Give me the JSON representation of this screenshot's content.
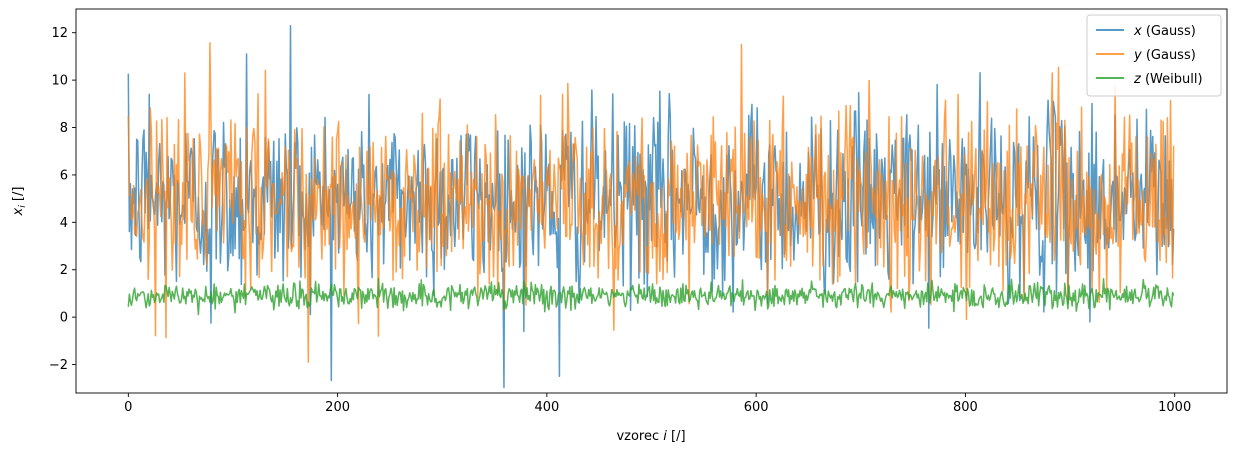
{
  "chart_data": {
    "type": "line",
    "title": "",
    "xlabel": {
      "prefix": "vzorec ",
      "var": "i",
      "suffix": " [/]"
    },
    "ylabel": {
      "var": "x",
      "sub": "i",
      "suffix": " [/]"
    },
    "xlim": [
      -50,
      1050
    ],
    "ylim": [
      -3.2,
      13.0
    ],
    "xticks": [
      0,
      200,
      400,
      600,
      800,
      1000
    ],
    "xtick_labels": [
      "0",
      "200",
      "400",
      "600",
      "800",
      "1000"
    ],
    "yticks": [
      -2,
      0,
      2,
      4,
      6,
      8,
      10,
      12
    ],
    "ytick_labels": [
      "−2",
      "0",
      "2",
      "4",
      "6",
      "8",
      "10",
      "12"
    ],
    "grid": false,
    "legend_position": "top-right",
    "n_samples": 1000,
    "series": [
      {
        "name_var": "x",
        "name_rest": " (Gauss)",
        "color": "#1f77b4",
        "opacity": 0.75,
        "mean": 5.0,
        "std": 1.9,
        "notable_points": [
          [
            155,
            12.3
          ],
          [
            113,
            11.1
          ],
          [
            412,
            -2.5
          ],
          [
            79,
            -0.25
          ],
          [
            378,
            -0.6
          ],
          [
            919,
            -0.2
          ],
          [
            20,
            9.4
          ]
        ]
      },
      {
        "name_var": "y",
        "name_rest": " (Gauss)",
        "color": "#ff7f0e",
        "opacity": 0.75,
        "mean": 5.0,
        "std": 1.9,
        "notable_points": [
          [
            586,
            11.5
          ],
          [
            54,
            10.3
          ],
          [
            883,
            10.3
          ],
          [
            239,
            -0.8
          ],
          [
            801,
            -0.1
          ],
          [
            0,
            8.5
          ]
        ]
      },
      {
        "name_var": "z",
        "name_rest": " (Weibull)",
        "color": "#2ca02c",
        "opacity": 0.8,
        "mean": 0.9,
        "std": 0.28,
        "min": 0.05,
        "max": 2.1,
        "notable_points": []
      }
    ]
  }
}
